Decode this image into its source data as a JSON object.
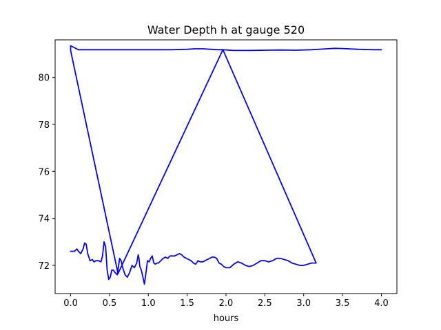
{
  "chart_data": {
    "type": "line",
    "title": "Water Depth h at gauge 520",
    "xlabel": "hours",
    "ylabel": "",
    "xlim": [
      -0.2,
      4.2
    ],
    "ylim": [
      70.8,
      81.6
    ],
    "xticks": [
      0.0,
      0.5,
      1.0,
      1.5,
      2.0,
      2.5,
      3.0,
      3.5,
      4.0
    ],
    "xtick_labels": [
      "0.0",
      "0.5",
      "1.0",
      "1.5",
      "2.0",
      "2.5",
      "3.0",
      "3.5",
      "4.0"
    ],
    "yticks": [
      72,
      74,
      76,
      78,
      80
    ],
    "ytick_labels": [
      "72",
      "74",
      "76",
      "78",
      "80"
    ],
    "grid": false,
    "color": "#0000ff",
    "series": [
      {
        "x": [
          0.0,
          0.0,
          0.02,
          0.05,
          0.08,
          0.1,
          0.13,
          0.16,
          0.18,
          0.2,
          0.22,
          0.25,
          0.28,
          0.3,
          0.33,
          0.36,
          0.39,
          0.41,
          0.43,
          0.45,
          0.47,
          0.49,
          0.51,
          0.53,
          0.55,
          0.57,
          0.6,
          0.63,
          0.65,
          0.67,
          0.7,
          0.73,
          0.76,
          0.79,
          0.82,
          0.85,
          0.87,
          0.88,
          0.89,
          0.91,
          0.93,
          0.95,
          0.97,
          0.99,
          1.01,
          1.03,
          1.05,
          1.07,
          1.09,
          1.11,
          1.13,
          1.16,
          1.19,
          1.22,
          1.25,
          1.28,
          1.31,
          1.34,
          1.37,
          1.4,
          1.43,
          1.46,
          1.49,
          1.52,
          1.55,
          1.58,
          1.61,
          1.64,
          1.67,
          1.7,
          1.73,
          1.76,
          1.79,
          1.82,
          1.85,
          1.88,
          1.91,
          1.94,
          1.97,
          2.0,
          2.05,
          2.1,
          2.15,
          2.2,
          2.25,
          2.3,
          2.35,
          2.4,
          2.45,
          2.5,
          2.55,
          2.6,
          2.65,
          2.7,
          2.75,
          2.8,
          2.85,
          2.9,
          2.95,
          3.0,
          3.05,
          3.1,
          3.16,
          1.96,
          0.61,
          0.0,
          0.0,
          0.1,
          0.3,
          0.5,
          0.7,
          0.9,
          1.1,
          1.3,
          1.5,
          1.6,
          1.7,
          1.8,
          1.9,
          1.96,
          2.1,
          2.3,
          2.5,
          2.7,
          2.9,
          3.1,
          3.3,
          3.4,
          3.5,
          3.7,
          3.9,
          4.0
        ],
        "y": [
          72.6,
          72.6,
          72.6,
          72.6,
          72.7,
          72.6,
          72.5,
          72.7,
          72.95,
          72.9,
          72.5,
          72.2,
          72.25,
          72.15,
          72.2,
          72.2,
          72.15,
          72.4,
          73.0,
          72.8,
          71.8,
          71.4,
          71.5,
          71.8,
          71.8,
          71.7,
          71.6,
          72.3,
          72.2,
          71.9,
          71.6,
          71.5,
          71.7,
          72.0,
          71.9,
          72.1,
          72.45,
          72.3,
          71.95,
          71.8,
          71.5,
          71.2,
          71.7,
          72.2,
          72.15,
          72.3,
          72.4,
          72.1,
          72.05,
          72.1,
          72.1,
          72.2,
          72.3,
          72.35,
          72.3,
          72.4,
          72.4,
          72.4,
          72.45,
          72.5,
          72.45,
          72.35,
          72.3,
          72.25,
          72.2,
          72.1,
          72.05,
          72.2,
          72.15,
          72.15,
          72.2,
          72.25,
          72.3,
          72.35,
          72.35,
          72.3,
          72.1,
          72.05,
          71.95,
          71.9,
          71.9,
          72.05,
          72.15,
          72.1,
          72.0,
          71.95,
          72.0,
          72.1,
          72.2,
          72.2,
          72.15,
          72.2,
          72.3,
          72.3,
          72.25,
          72.2,
          72.1,
          72.05,
          72.0,
          72.0,
          72.05,
          72.1,
          72.1,
          81.18,
          71.65,
          81.15,
          81.35,
          81.18,
          81.18,
          81.18,
          81.18,
          81.18,
          81.18,
          81.18,
          81.2,
          81.22,
          81.22,
          81.2,
          81.18,
          81.18,
          81.15,
          81.15,
          81.16,
          81.17,
          81.16,
          81.18,
          81.22,
          81.24,
          81.23,
          81.2,
          81.18,
          81.18
        ]
      }
    ]
  }
}
